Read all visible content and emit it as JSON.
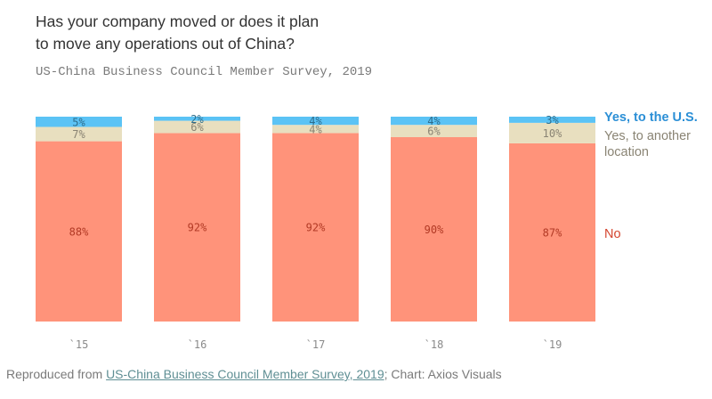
{
  "title_lines": [
    "Has your company moved or does it plan",
    "to move any operations out of China?"
  ],
  "subtitle": "US-China Business Council Member Survey, 2019",
  "footer": {
    "prefix": "Reproduced from ",
    "link": "US-China Business Council Member Survey, 2019",
    "suffix": "; Chart: Axios Visuals"
  },
  "chart_data": {
    "type": "bar",
    "stacked": true,
    "categories": [
      "`15",
      "`16",
      "`17",
      "`18",
      "`19"
    ],
    "series": [
      {
        "name": "No",
        "values": [
          88,
          92,
          92,
          90,
          87
        ],
        "labels": [
          "88%",
          "92%",
          "92%",
          "90%",
          "87%"
        ],
        "color": "#ff937a",
        "label_color": "#b23a25"
      },
      {
        "name": "Yes, to another location",
        "values": [
          7,
          6,
          4,
          6,
          10
        ],
        "labels": [
          "7%",
          "6%",
          "4%",
          "6%",
          "10%"
        ],
        "color": "#e8dfbf",
        "label_color": "#8a8474"
      },
      {
        "name": "Yes, to the U.S.",
        "values": [
          5,
          2,
          4,
          4,
          3
        ],
        "labels": [
          "5%",
          "2%",
          "4%",
          "4%",
          "3%"
        ],
        "color": "#5bc3f5",
        "label_color": "#2d6d8c"
      }
    ],
    "legend_lines": [
      [
        "Yes, to the U.S."
      ],
      [
        "Yes, to another",
        "location"
      ],
      [
        "No"
      ]
    ],
    "legend_colors": [
      "#2b8fd6",
      "#8a8474",
      "#d4452f"
    ],
    "ylim": [
      0,
      100
    ],
    "grid": false,
    "legend_position": "right"
  }
}
